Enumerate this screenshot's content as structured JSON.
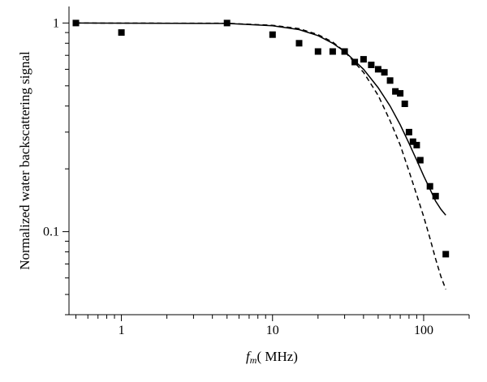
{
  "chart_data": {
    "type": "scatter",
    "title": "",
    "xlabel": {
      "main": "f",
      "sub": "m",
      "unit": "( MHz)"
    },
    "ylabel": "Normalized water backscattering signal",
    "xscale": "log",
    "yscale": "log",
    "xlim": [
      0.45,
      200
    ],
    "ylim": [
      0.04,
      1.2
    ],
    "x_tick_labels": [
      {
        "value": 1,
        "label": "1"
      },
      {
        "value": 10,
        "label": "10"
      },
      {
        "value": 100,
        "label": "100"
      }
    ],
    "y_tick_labels": [
      {
        "value": 1,
        "label": "1"
      },
      {
        "value": 0.1,
        "label": "0.1"
      }
    ],
    "grid": false,
    "legend": "none",
    "series": [
      {
        "style": "square-markers",
        "points": [
          [
            0.5,
            1.0
          ],
          [
            1.0,
            0.9
          ],
          [
            5.0,
            1.0
          ],
          [
            10.0,
            0.88
          ],
          [
            15.0,
            0.8
          ],
          [
            20.0,
            0.73
          ],
          [
            25.0,
            0.73
          ],
          [
            30.0,
            0.73
          ],
          [
            35.0,
            0.65
          ],
          [
            40.0,
            0.67
          ],
          [
            45.0,
            0.63
          ],
          [
            50.0,
            0.6
          ],
          [
            55.0,
            0.58
          ],
          [
            60.0,
            0.53
          ],
          [
            65.0,
            0.47
          ],
          [
            70.0,
            0.46
          ],
          [
            75.0,
            0.41
          ],
          [
            80.0,
            0.3
          ],
          [
            85.0,
            0.27
          ],
          [
            90.0,
            0.26
          ],
          [
            95.0,
            0.22
          ],
          [
            110.0,
            0.165
          ],
          [
            120.0,
            0.148
          ],
          [
            140.0,
            0.078
          ]
        ]
      },
      {
        "style": "solid-line",
        "points": [
          [
            0.5,
            1.0
          ],
          [
            5.0,
            0.995
          ],
          [
            10.0,
            0.97
          ],
          [
            15.0,
            0.93
          ],
          [
            20.0,
            0.87
          ],
          [
            25.0,
            0.8
          ],
          [
            30.0,
            0.73
          ],
          [
            40.0,
            0.6
          ],
          [
            50.0,
            0.49
          ],
          [
            60.0,
            0.4
          ],
          [
            70.0,
            0.325
          ],
          [
            80.0,
            0.265
          ],
          [
            90.0,
            0.22
          ],
          [
            100.0,
            0.185
          ],
          [
            110.0,
            0.16
          ],
          [
            120.0,
            0.14
          ],
          [
            130.0,
            0.128
          ],
          [
            140.0,
            0.12
          ]
        ]
      },
      {
        "style": "dashed-line",
        "points": [
          [
            0.5,
            1.0
          ],
          [
            5.0,
            0.997
          ],
          [
            10.0,
            0.975
          ],
          [
            15.0,
            0.94
          ],
          [
            20.0,
            0.88
          ],
          [
            25.0,
            0.81
          ],
          [
            30.0,
            0.73
          ],
          [
            40.0,
            0.58
          ],
          [
            50.0,
            0.45
          ],
          [
            60.0,
            0.34
          ],
          [
            70.0,
            0.26
          ],
          [
            80.0,
            0.195
          ],
          [
            90.0,
            0.15
          ],
          [
            100.0,
            0.118
          ],
          [
            110.0,
            0.093
          ],
          [
            120.0,
            0.074
          ],
          [
            130.0,
            0.061
          ],
          [
            140.0,
            0.053
          ]
        ]
      }
    ]
  }
}
